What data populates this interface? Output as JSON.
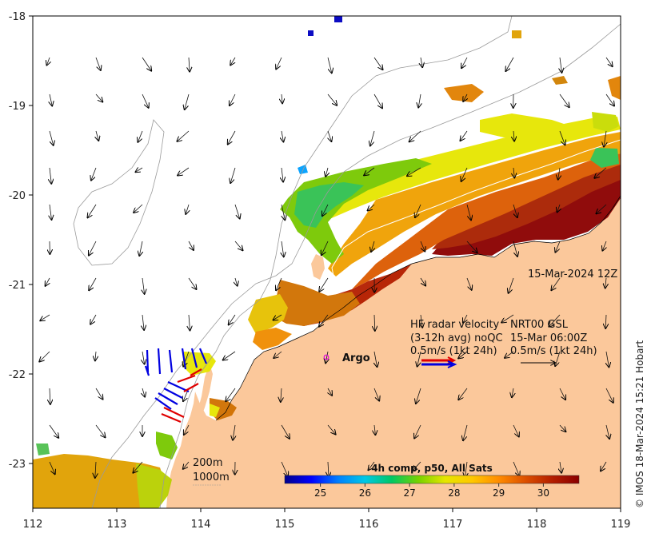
{
  "axes": {
    "lon_ticks": [
      "112",
      "113",
      "114",
      "115",
      "116",
      "117",
      "118",
      "119"
    ],
    "lat_ticks": [
      "-18",
      "-19",
      "-20",
      "-21",
      "-22",
      "-23"
    ],
    "lon_range": [
      112,
      119
    ],
    "lat_range": [
      -23.5,
      -18
    ]
  },
  "map": {
    "date_label": "15-Mar-2024 12Z",
    "argo_label": "Argo",
    "argo_marker_color": "#e000e0",
    "land_color": "#fbc89b",
    "sea_color": "#ffffff"
  },
  "legend": {
    "hf_title": "HF radar velocity",
    "hf_subtitle": "(3-12h avg) noQC",
    "hf_scale": "0.5m/s (1kt 24h)",
    "nrt_title": "NRT00 GSL",
    "nrt_date": "15-Mar 06:00Z",
    "nrt_scale": "0.5m/s (1kt 24h)",
    "hf_arrow_colors": [
      "#e00000",
      "#0000e0"
    ],
    "nrt_arrow_color": "#000000"
  },
  "isobaths": {
    "label_200": "200m",
    "label_1000": "1000m"
  },
  "colorbar": {
    "title": "4h comp, p50, All Sats",
    "ticks": [
      "25",
      "26",
      "27",
      "28",
      "29",
      "30"
    ],
    "range": [
      24.2,
      30.8
    ],
    "colors": [
      "#00008b",
      "#0000ff",
      "#0080ff",
      "#00c8e6",
      "#00c864",
      "#78d200",
      "#e6e600",
      "#ffc800",
      "#ff8c00",
      "#dc5000",
      "#b41e00",
      "#8b0000"
    ]
  },
  "credit": "© IMOS 18-Mar-2024 15:21 Hobart"
}
